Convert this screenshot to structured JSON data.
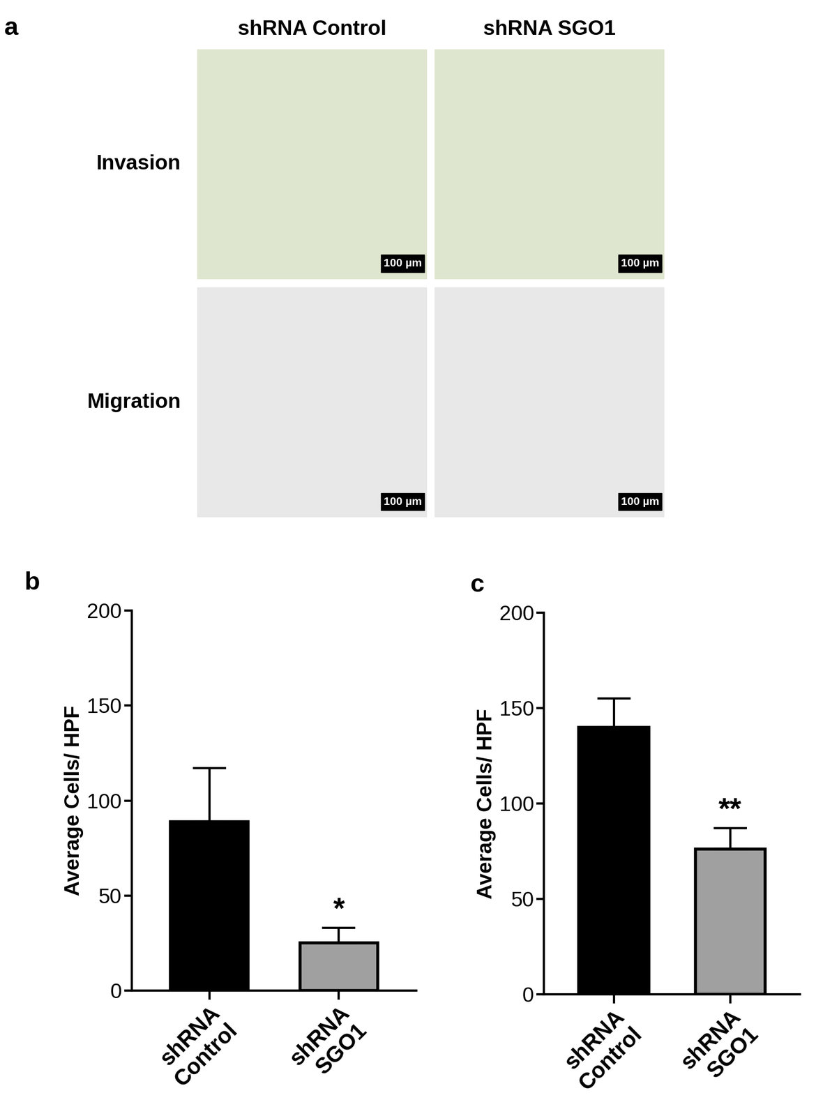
{
  "panel_a": {
    "label": "a",
    "columns": [
      "shRNA Control",
      "shRNA SGO1"
    ],
    "rows": [
      "Invasion",
      "Migration"
    ],
    "scale_bar": "100 µm"
  },
  "chart_data": [
    {
      "type": "bar",
      "panel": "b",
      "categories": [
        "shRNA\nControl",
        "shRNA\nSGO1"
      ],
      "values": [
        89,
        25
      ],
      "errors": [
        28,
        8
      ],
      "colors": [
        "#000000",
        "#a0a0a0"
      ],
      "y_label": "Average Cells/ HPF",
      "ylim": [
        0,
        200
      ],
      "yticks": [
        0,
        50,
        100,
        150,
        200
      ],
      "annotations": [
        {
          "category": "shRNA\nSGO1",
          "text": "*"
        }
      ]
    },
    {
      "type": "bar",
      "panel": "c",
      "categories": [
        "shRNA\nControl",
        "shRNA\nSGO1"
      ],
      "values": [
        140,
        76
      ],
      "errors": [
        15,
        11
      ],
      "colors": [
        "#000000",
        "#a0a0a0"
      ],
      "y_label": "Average Cells/ HPF",
      "ylim": [
        0,
        200
      ],
      "yticks": [
        0,
        50,
        100,
        150,
        200
      ],
      "annotations": [
        {
          "category": "shRNA\nSGO1",
          "text": "**"
        }
      ]
    }
  ]
}
